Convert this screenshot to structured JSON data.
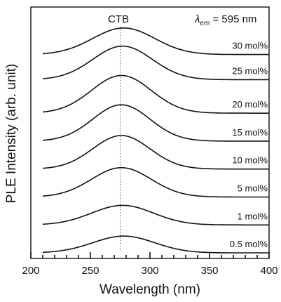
{
  "chart_data": {
    "type": "line",
    "xlabel": "Wavelength (nm)",
    "ylabel": "PLE Intensity (arb. unit)",
    "xlim": [
      200,
      400
    ],
    "x_ticks": [
      200,
      250,
      300,
      350,
      400
    ],
    "minor_tick_step": 10,
    "y_ticks_visible": false,
    "grid": false,
    "stacked_offset": true,
    "annotations": {
      "ctb_label": "CTB",
      "ctb_x": 275,
      "lambda_symbol": "λ",
      "lambda_subscript": "em",
      "lambda_text": " = 595 nm"
    },
    "series": [
      {
        "name": "0.5 mol%",
        "baseline": 0.2,
        "peak_x": 278,
        "peak_height": 0.6,
        "width": 26
      },
      {
        "name": "1 mol%",
        "baseline": 1.2,
        "peak_x": 277,
        "peak_height": 0.7,
        "width": 26
      },
      {
        "name": "5 mol%",
        "baseline": 2.2,
        "peak_x": 276,
        "peak_height": 1.05,
        "width": 25
      },
      {
        "name": "10 mol%",
        "baseline": 3.2,
        "peak_x": 276,
        "peak_height": 1.2,
        "width": 24
      },
      {
        "name": "15 mol%",
        "baseline": 4.2,
        "peak_x": 276,
        "peak_height": 1.3,
        "width": 24
      },
      {
        "name": "20 mol%",
        "baseline": 5.2,
        "peak_x": 276,
        "peak_height": 1.35,
        "width": 25
      },
      {
        "name": "25 mol%",
        "baseline": 6.4,
        "peak_x": 277,
        "peak_height": 1.2,
        "width": 25
      },
      {
        "name": "30 mol%",
        "baseline": 7.3,
        "peak_x": 278,
        "peak_height": 0.95,
        "width": 26
      }
    ]
  }
}
